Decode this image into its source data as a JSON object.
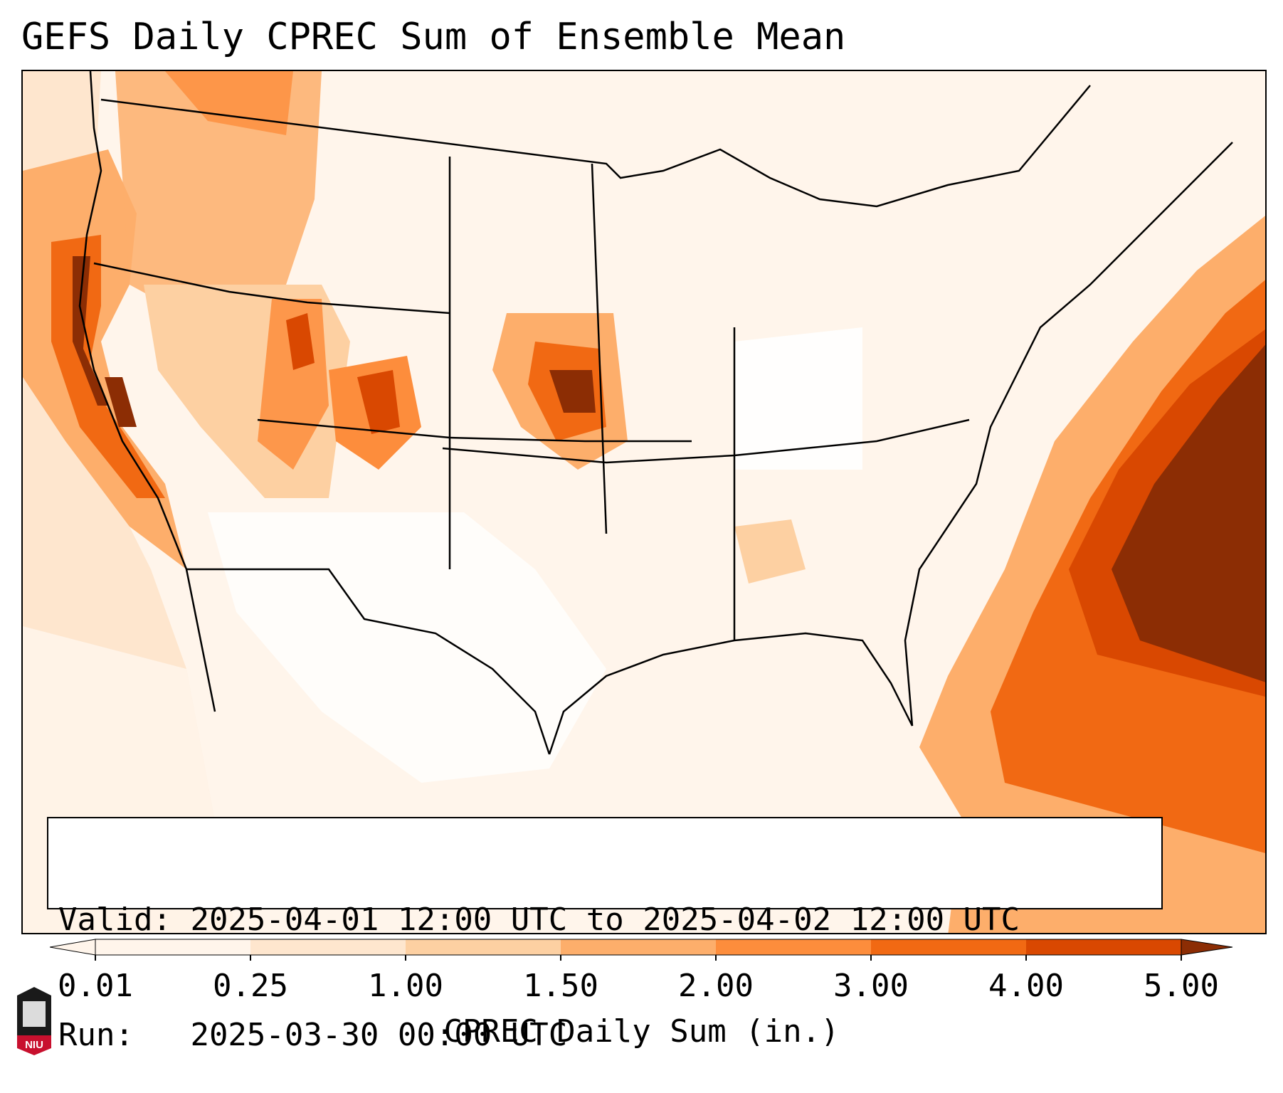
{
  "title": "GEFS Daily CPREC Sum of Ensemble Mean",
  "info": {
    "valid_label": "Valid:",
    "valid_value": "2025-04-01 12:00 UTC to 2025-04-02 12:00 UTC",
    "run_label": "Run:",
    "run_value": "2025-03-30 00:00 UTC"
  },
  "colorbar": {
    "label": "CPREC Daily Sum (in.)",
    "ticks": [
      "0.01",
      "0.25",
      "1.00",
      "1.50",
      "2.00",
      "3.00",
      "4.00",
      "5.00"
    ],
    "colors": [
      "#fff5eb",
      "#fee6ce",
      "#fdd0a2",
      "#fdae6b",
      "#fd8d3c",
      "#f16913",
      "#d94801",
      "#8c2d04"
    ],
    "extend": "both"
  },
  "logo": {
    "text": "NIU"
  }
}
